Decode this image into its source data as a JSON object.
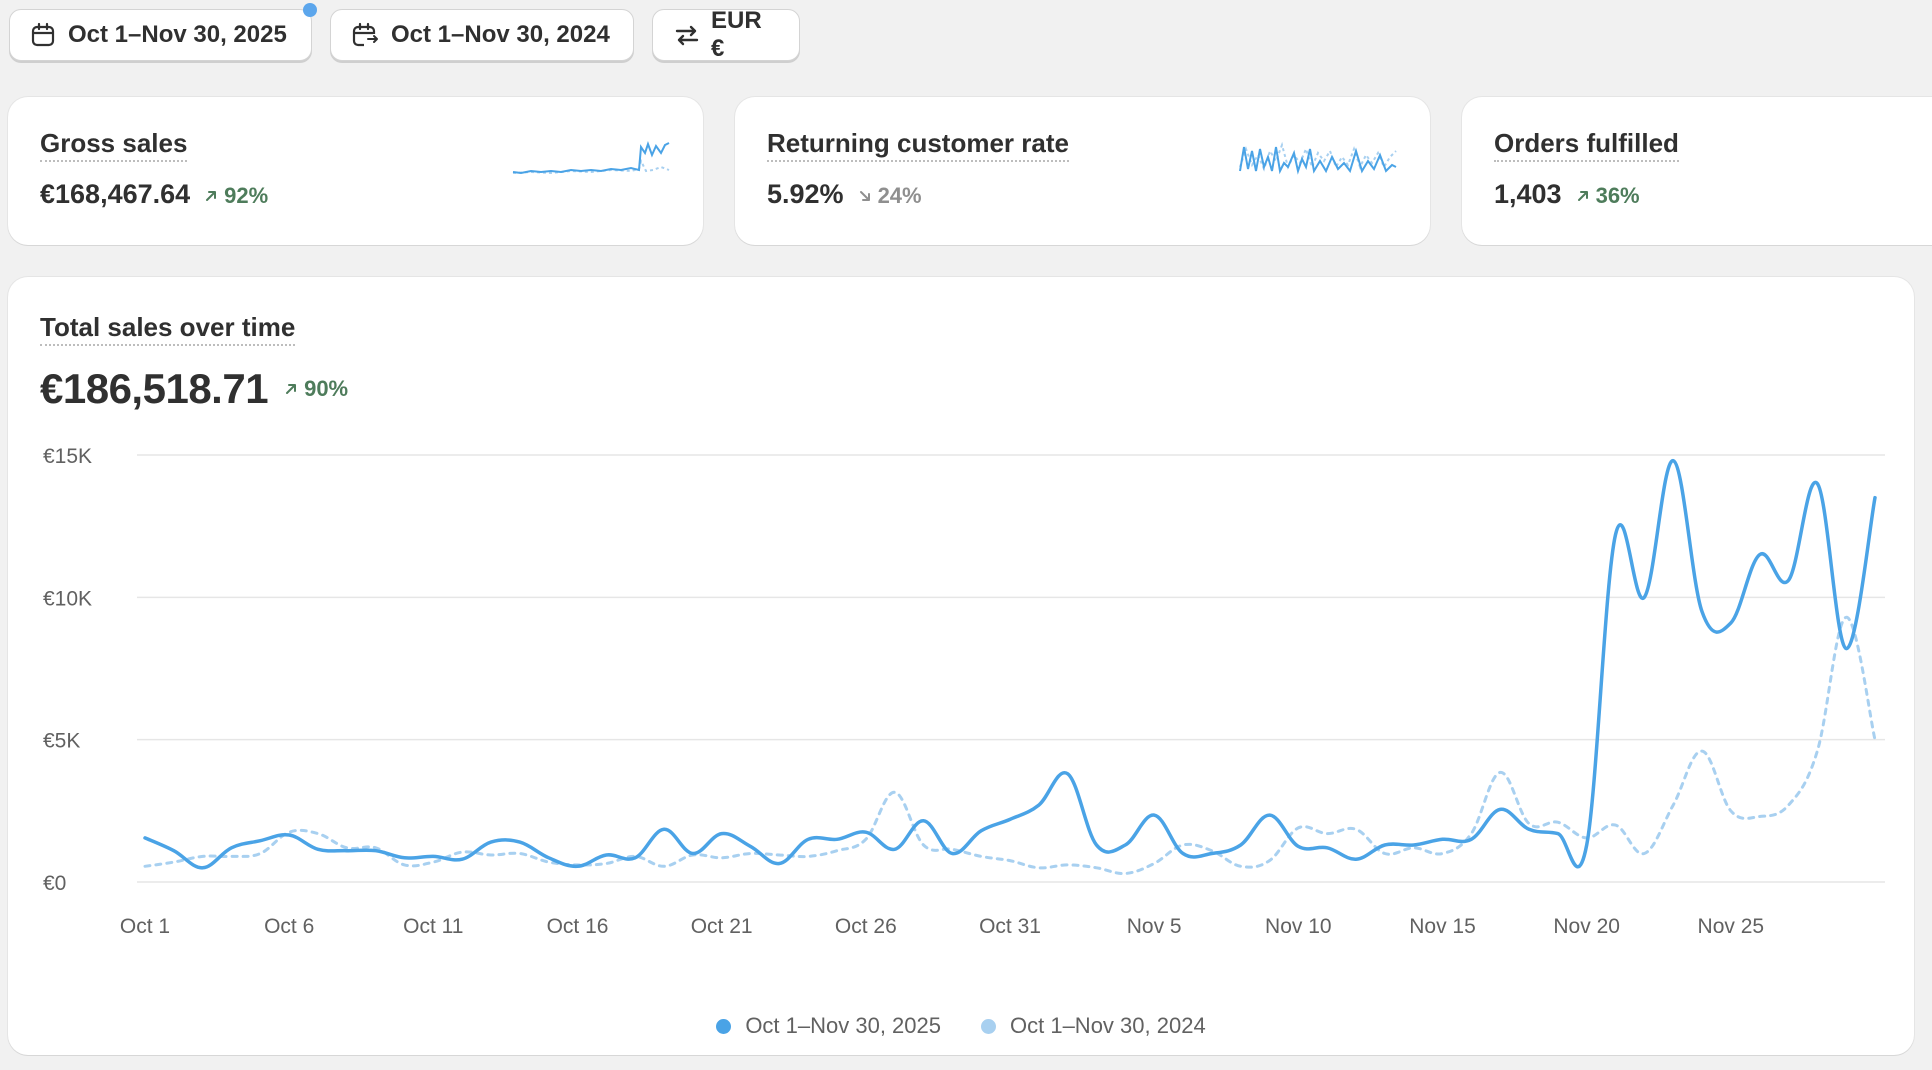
{
  "toolbar": {
    "date_range": "Oct 1–Nov 30, 2025",
    "compare_range": "Oct 1–Nov 30, 2024",
    "currency": "EUR €"
  },
  "metrics": [
    {
      "title": "Gross sales",
      "value": "€168,467.64",
      "delta": "92%",
      "direction": "up"
    },
    {
      "title": "Returning customer rate",
      "value": "5.92%",
      "delta": "24%",
      "direction": "down"
    },
    {
      "title": "Orders fulfilled",
      "value": "1,403",
      "delta": "36%",
      "direction": "up"
    }
  ],
  "total_sales": {
    "title": "Total sales over time",
    "value": "€186,518.71",
    "delta": "90%",
    "direction": "up"
  },
  "colors": {
    "current": "#4aa3e6",
    "previous": "#a8d0f0",
    "up": "#4e7c5b",
    "down": "#8f8f8f"
  },
  "chart_data": {
    "type": "line",
    "x_tick_labels": [
      "Oct 1",
      "Oct 6",
      "Oct 11",
      "Oct 16",
      "Oct 21",
      "Oct 26",
      "Oct 31",
      "Nov 5",
      "Nov 10",
      "Nov 15",
      "Nov 20",
      "Nov 25"
    ],
    "y_tick_labels": [
      "€0",
      "€5K",
      "€10K",
      "€15K"
    ],
    "ylim": [
      0,
      15000
    ],
    "grid": true,
    "legend_position": "bottom",
    "series": [
      {
        "name": "Oct 1–Nov 30, 2025",
        "style": "solid",
        "values": [
          1550,
          1100,
          500,
          1200,
          1450,
          1650,
          1150,
          1100,
          1100,
          850,
          900,
          800,
          1400,
          1400,
          850,
          550,
          950,
          850,
          1850,
          1000,
          1700,
          1250,
          650,
          1500,
          1500,
          1750,
          1150,
          2150,
          1000,
          1800,
          2200,
          2700,
          3800,
          1300,
          1300,
          2350,
          1000,
          1000,
          1300,
          2350,
          1250,
          1200,
          800,
          1300,
          1300,
          1500,
          1500,
          2550,
          1850,
          1700,
          1300,
          12200,
          10000,
          14800,
          9500,
          9100,
          11500,
          10600,
          14000,
          8200,
          13500
        ]
      },
      {
        "name": "Oct 1–Nov 30, 2024",
        "style": "dashed",
        "values": [
          550,
          700,
          900,
          900,
          1000,
          1750,
          1700,
          1200,
          1200,
          600,
          700,
          1050,
          950,
          1000,
          700,
          600,
          650,
          900,
          550,
          950,
          850,
          1000,
          950,
          900,
          1100,
          1500,
          3150,
          1300,
          1150,
          900,
          750,
          500,
          600,
          500,
          300,
          650,
          1300,
          1100,
          550,
          750,
          1900,
          1700,
          1850,
          1000,
          1200,
          1000,
          1700,
          3850,
          2050,
          2100,
          1550,
          2000,
          1000,
          2700,
          4600,
          2500,
          2300,
          2700,
          4600,
          9300,
          5000
        ]
      }
    ]
  }
}
